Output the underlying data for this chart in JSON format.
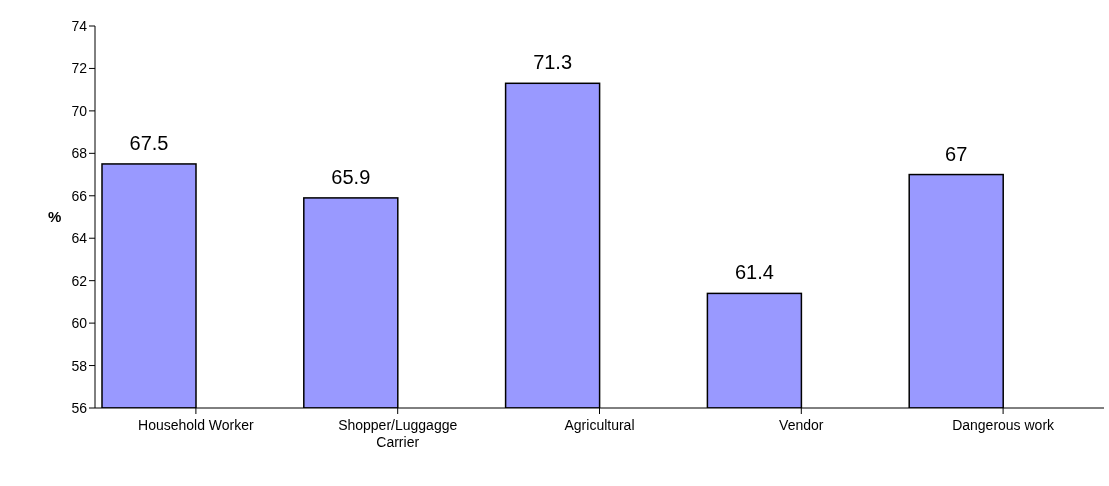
{
  "chart_data": {
    "type": "bar",
    "ylabel": "%",
    "categories": [
      "Household Worker",
      "Shopper/Luggagge Carrier",
      "Agricultural",
      "Vendor",
      "Dangerous work"
    ],
    "values": [
      67.5,
      65.9,
      71.3,
      61.4,
      67
    ],
    "color": "#9999ff",
    "ylim": [
      56,
      74
    ],
    "yticks": [
      56,
      58,
      60,
      62,
      64,
      66,
      68,
      70,
      72,
      74
    ],
    "data_labels": true,
    "grid": false,
    "legend": false
  }
}
